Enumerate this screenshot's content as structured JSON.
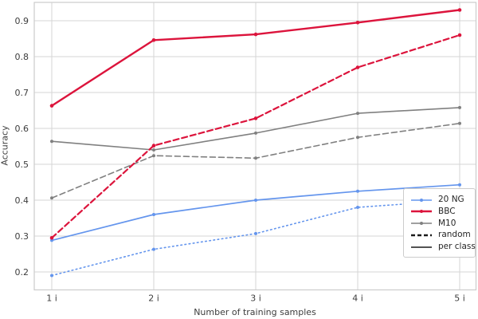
{
  "chart_data": {
    "type": "line",
    "title": "",
    "xlabel": "Number of training samples",
    "ylabel": "Accuracy",
    "x_tick_labels": [
      "1 i",
      "2 i",
      "3 i",
      "4 i",
      "5 i"
    ],
    "y_tick_labels": [
      "0.2",
      "0.3",
      "0.4",
      "0.5",
      "0.6",
      "0.7",
      "0.8",
      "0.9"
    ],
    "ylim": [
      0.15,
      0.955
    ],
    "grid": true,
    "legend_position": "lower right",
    "series": [
      {
        "name": "M10 per class",
        "dataset": "M10",
        "variant": "per class",
        "color": "#808080",
        "style": "solid",
        "width": 1.6,
        "values": [
          0.564,
          0.54,
          0.587,
          0.642,
          0.658
        ]
      },
      {
        "name": "M10 random",
        "dataset": "M10",
        "variant": "random",
        "color": "#808080",
        "style": "dashed",
        "width": 1.6,
        "values": [
          0.406,
          0.524,
          0.517,
          0.575,
          0.614
        ]
      },
      {
        "name": "20 NG per class",
        "dataset": "20 NG",
        "variant": "per class",
        "color": "#6495ED",
        "style": "solid",
        "width": 1.7,
        "values": [
          0.288,
          0.36,
          0.4,
          0.425,
          0.443
        ]
      },
      {
        "name": "20 NG random",
        "dataset": "20 NG",
        "variant": "random",
        "color": "#6495ED",
        "style": "dotted",
        "width": 1.6,
        "values": [
          0.19,
          0.263,
          0.307,
          0.38,
          0.4
        ]
      },
      {
        "name": "BBC per class",
        "dataset": "BBC",
        "variant": "per class",
        "color": "#DC143C",
        "style": "solid",
        "width": 2.4,
        "values": [
          0.663,
          0.846,
          0.862,
          0.895,
          0.93
        ]
      },
      {
        "name": "BBC random",
        "dataset": "BBC",
        "variant": "random",
        "color": "#DC143C",
        "style": "dashed",
        "width": 2.2,
        "values": [
          0.295,
          0.552,
          0.628,
          0.77,
          0.86
        ]
      }
    ],
    "legend_entries": [
      {
        "label": "20 NG",
        "color": "#6495ED",
        "style": "solid",
        "weight": "thin",
        "marker": true
      },
      {
        "label": "BBC",
        "color": "#DC143C",
        "style": "solid",
        "weight": "thick",
        "marker": true
      },
      {
        "label": "M10",
        "color": "#808080",
        "style": "solid",
        "weight": "thin",
        "marker": true
      },
      {
        "label": "random",
        "color": "#1a1a1a",
        "style": "dashed",
        "weight": "thick",
        "marker": false
      },
      {
        "label": "per class",
        "color": "#1a1a1a",
        "style": "solid",
        "weight": "thin",
        "marker": false
      }
    ],
    "colors": {
      "20 NG": "#6495ED",
      "BBC": "#DC143C",
      "M10": "#808080",
      "grid": "#d6d6d6",
      "spine": "#cccccc",
      "text": "#3d3d3d",
      "background": "#ffffff"
    }
  }
}
